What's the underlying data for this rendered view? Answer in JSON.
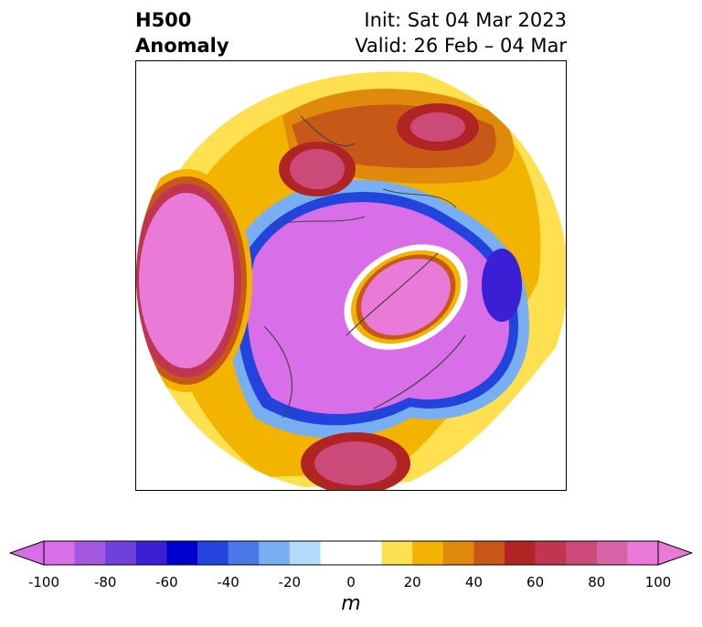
{
  "title": {
    "left_line1": "H500",
    "left_line2": "Anomaly",
    "right_line1": "Init: Sat 04 Mar 2023",
    "right_line2": "Valid: 26 Feb – 04 Mar"
  },
  "colorbar": {
    "label": "m",
    "ticks": [
      "-100",
      "-80",
      "-60",
      "-40",
      "-20",
      "0",
      "20",
      "40",
      "60",
      "80",
      "100"
    ],
    "tick_values": [
      -100,
      -80,
      -60,
      -40,
      -20,
      0,
      20,
      40,
      60,
      80,
      100
    ],
    "min": -100,
    "max": 100,
    "extend": "both",
    "colors": [
      "#d86ee8",
      "#a259e0",
      "#7040dc",
      "#3a1fd4",
      "#0000cc",
      "#2244dd",
      "#4a78e6",
      "#78aef2",
      "#b2dcfa",
      "#ffffff",
      "#ffffff",
      "#fee050",
      "#f2b400",
      "#e08a0c",
      "#c85818",
      "#b02424",
      "#c03650",
      "#cc4a78",
      "#d864a8",
      "#ea7ad8"
    ],
    "under_color": "#d86ee8",
    "over_color": "#ea7ad8"
  }
}
